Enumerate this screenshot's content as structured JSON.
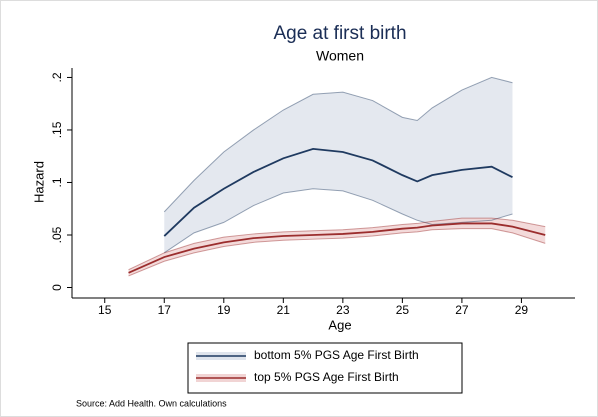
{
  "chart_data": {
    "type": "line_band",
    "title": "Age at first birth",
    "subtitle": "Women",
    "x_label": "Age",
    "y_label": "Hazard",
    "note": "Source: Add Health.  Own calculations",
    "legend": "bottom",
    "x": [
      15.8,
      17,
      18,
      19,
      20,
      21,
      22,
      23,
      24,
      25,
      25.5,
      26,
      27,
      28,
      28.7,
      29.8
    ],
    "series": [
      {
        "name": "bottom 5% PGS Age First Birth",
        "color": "#1f3a60",
        "band_color": "#dfe4ec",
        "values": [
          null,
          0.049,
          0.076,
          0.094,
          0.11,
          0.123,
          0.132,
          0.129,
          0.121,
          0.107,
          0.101,
          0.107,
          0.112,
          0.115,
          0.105,
          null
        ],
        "upper": [
          null,
          0.072,
          0.102,
          0.129,
          0.15,
          0.169,
          0.184,
          0.186,
          0.178,
          0.162,
          0.159,
          0.171,
          0.188,
          0.2,
          0.195,
          null
        ],
        "lower": [
          null,
          0.033,
          0.052,
          0.062,
          0.078,
          0.09,
          0.094,
          0.092,
          0.083,
          0.07,
          0.064,
          0.06,
          0.062,
          0.064,
          0.07,
          null
        ]
      },
      {
        "name": "top 5% PGS Age First Birth",
        "color": "#9b2d2d",
        "band_color": "#f1d4d4",
        "values": [
          0.014,
          0.029,
          0.037,
          0.043,
          0.047,
          0.049,
          0.05,
          0.051,
          0.053,
          0.056,
          0.057,
          0.059,
          0.061,
          0.061,
          0.058,
          0.05
        ],
        "upper": [
          0.017,
          0.033,
          0.042,
          0.048,
          0.051,
          0.053,
          0.054,
          0.055,
          0.057,
          0.06,
          0.061,
          0.063,
          0.066,
          0.066,
          0.064,
          0.058
        ],
        "lower": [
          0.011,
          0.025,
          0.033,
          0.039,
          0.043,
          0.045,
          0.046,
          0.047,
          0.049,
          0.052,
          0.053,
          0.055,
          0.056,
          0.056,
          0.052,
          0.042
        ]
      }
    ],
    "xlim": [
      13.9,
      30.8
    ],
    "xticks": [
      15,
      17,
      19,
      21,
      23,
      25,
      27,
      29
    ],
    "ylim": [
      -0.01,
      0.209
    ],
    "yticks": [
      0,
      {
        "value": 0.05,
        "label": ".05"
      },
      {
        "value": 0.1,
        "label": ".1"
      },
      {
        "value": 0.15,
        "label": ".15"
      },
      {
        "value": 0.2,
        "label": ".2"
      }
    ]
  }
}
